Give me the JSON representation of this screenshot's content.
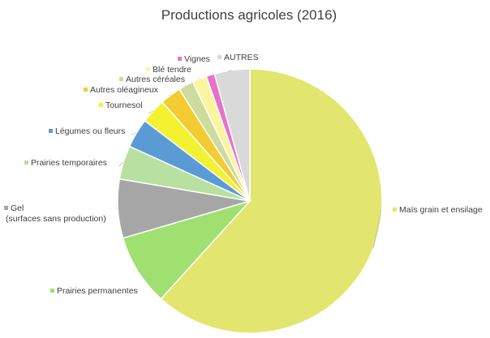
{
  "chart_data": {
    "type": "pie",
    "title": "Productions agricoles (2016)",
    "slices": [
      {
        "label": "Maïs grain et ensilage",
        "value": 60.0,
        "color": "#e2e66e"
      },
      {
        "label": "Prairies permanentes",
        "value": 8.5,
        "color": "#a0e070"
      },
      {
        "label": [
          "Gel",
          "(surfaces sans production)"
        ],
        "value": 7.0,
        "color": "#a6a6a6"
      },
      {
        "label": "Prairies temporaires",
        "value": 4.0,
        "color": "#b8e0a0"
      },
      {
        "label": "Légumes ou fleurs",
        "value": 3.5,
        "color": "#5b9bd5"
      },
      {
        "label": "Tournesol",
        "value": 3.0,
        "color": "#f2f230"
      },
      {
        "label": "Autres oléagineux",
        "value": 2.5,
        "color": "#f2cc30"
      },
      {
        "label": "Autres céréales",
        "value": 1.8,
        "color": "#cddc9c"
      },
      {
        "label": "Blé tendre",
        "value": 1.7,
        "color": "#fbf5a0"
      },
      {
        "label": "Vignes",
        "value": 1.0,
        "color": "#e673c8"
      },
      {
        "label": "AUTRES",
        "value": 4.2,
        "color": "#d9d9d9"
      }
    ]
  }
}
